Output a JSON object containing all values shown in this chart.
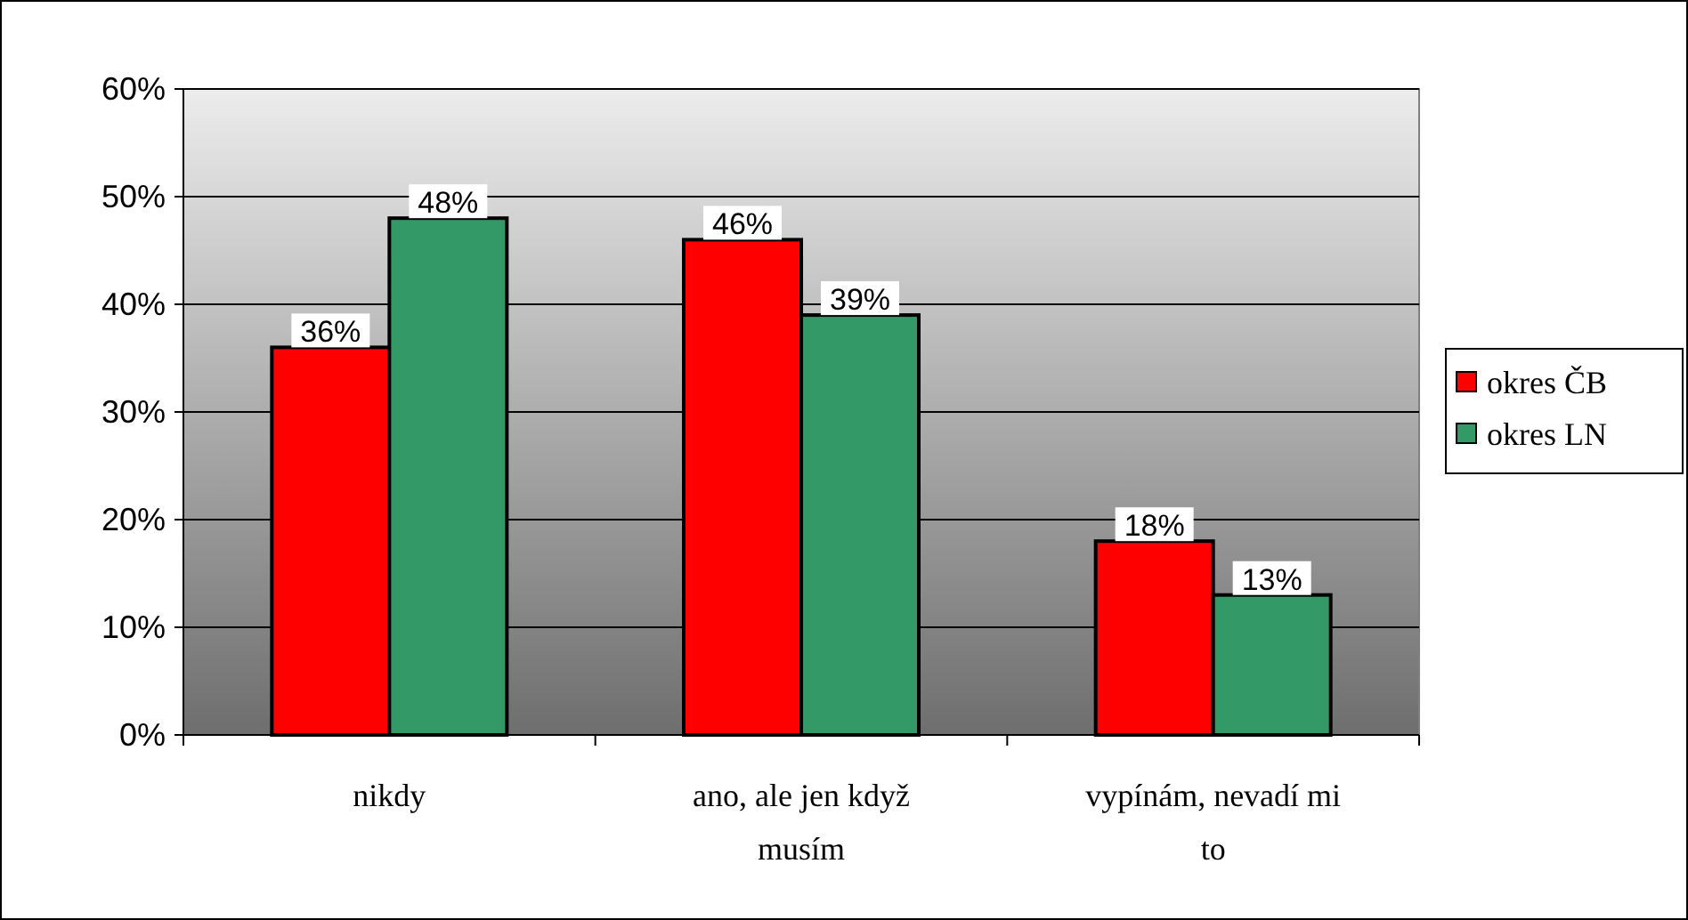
{
  "chart_data": {
    "type": "bar",
    "categories": [
      "nikdy",
      "ano, ale jen když musím",
      "vypínám, nevadí mi to"
    ],
    "series": [
      {
        "name": "okres ČB",
        "color": "#ff0000",
        "values": [
          36,
          46,
          18
        ],
        "value_labels": [
          "36%",
          "46%",
          "18%"
        ]
      },
      {
        "name": "okres LN",
        "color": "#339966",
        "values": [
          48,
          39,
          13
        ],
        "value_labels": [
          "48%",
          "39%",
          "13%"
        ]
      }
    ],
    "ylim": [
      0,
      60
    ],
    "yticks": [
      {
        "value": 0,
        "label": "0%"
      },
      {
        "value": 10,
        "label": "10%"
      },
      {
        "value": 20,
        "label": "20%"
      },
      {
        "value": 30,
        "label": "30%"
      },
      {
        "value": 40,
        "label": "40%"
      },
      {
        "value": 50,
        "label": "50%"
      },
      {
        "value": 60,
        "label": "60%"
      }
    ],
    "grid": "y",
    "legend": "right"
  }
}
